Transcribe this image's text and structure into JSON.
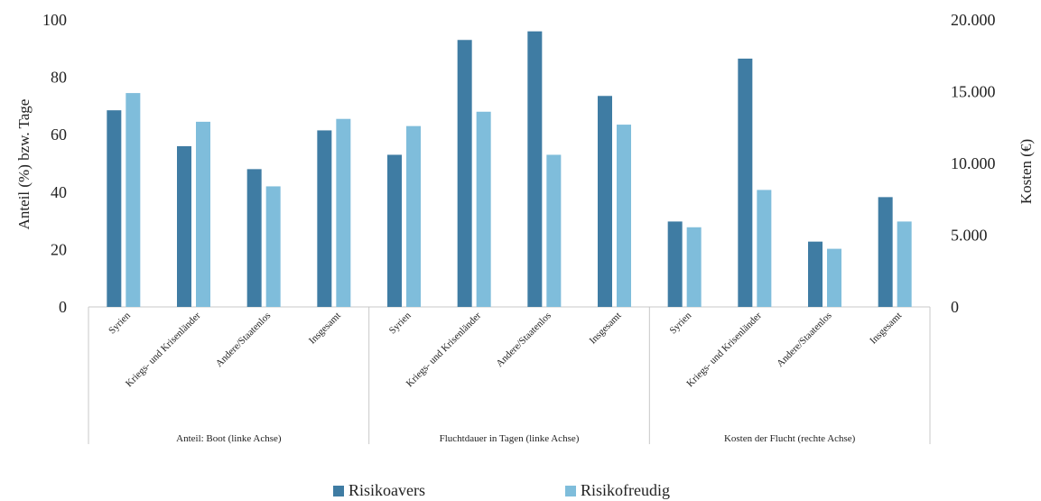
{
  "chart_data": {
    "type": "bar",
    "left_axis": {
      "label": "Anteil (%) bzw. Tage",
      "ticks": [
        "0",
        "20",
        "40",
        "60",
        "80",
        "100"
      ],
      "range": [
        0,
        100
      ]
    },
    "right_axis": {
      "label": "Kosten (€)",
      "ticks": [
        "0",
        "5.000",
        "10.000",
        "15.000",
        "20.000"
      ],
      "range": [
        0,
        20000
      ]
    },
    "groups": [
      {
        "label": "Anteil: Boot (linke Achse)",
        "axis": "left"
      },
      {
        "label": "Fluchtdauer in Tagen (linke Achse)",
        "axis": "left"
      },
      {
        "label": "Kosten der Flucht (rechte Achse)",
        "axis": "right"
      }
    ],
    "categories": [
      "Syrien",
      "Kriegs- und Krisenländer",
      "Andere/Staatenlos",
      "Insgesamt"
    ],
    "series": [
      {
        "name": "Risikoavers",
        "color": "#3f7ca3",
        "values": [
          [
            68.5,
            56,
            48,
            61.5
          ],
          [
            53,
            93,
            96,
            73.5
          ],
          [
            5950,
            17300,
            4550,
            7650
          ]
        ]
      },
      {
        "name": "Risikofreudig",
        "color": "#7fbddb",
        "values": [
          [
            74.5,
            64.5,
            42,
            65.5
          ],
          [
            63,
            68,
            53,
            63.5
          ],
          [
            5550,
            8150,
            4050,
            5950
          ]
        ]
      }
    ],
    "legend_position": "bottom",
    "grid": false
  }
}
